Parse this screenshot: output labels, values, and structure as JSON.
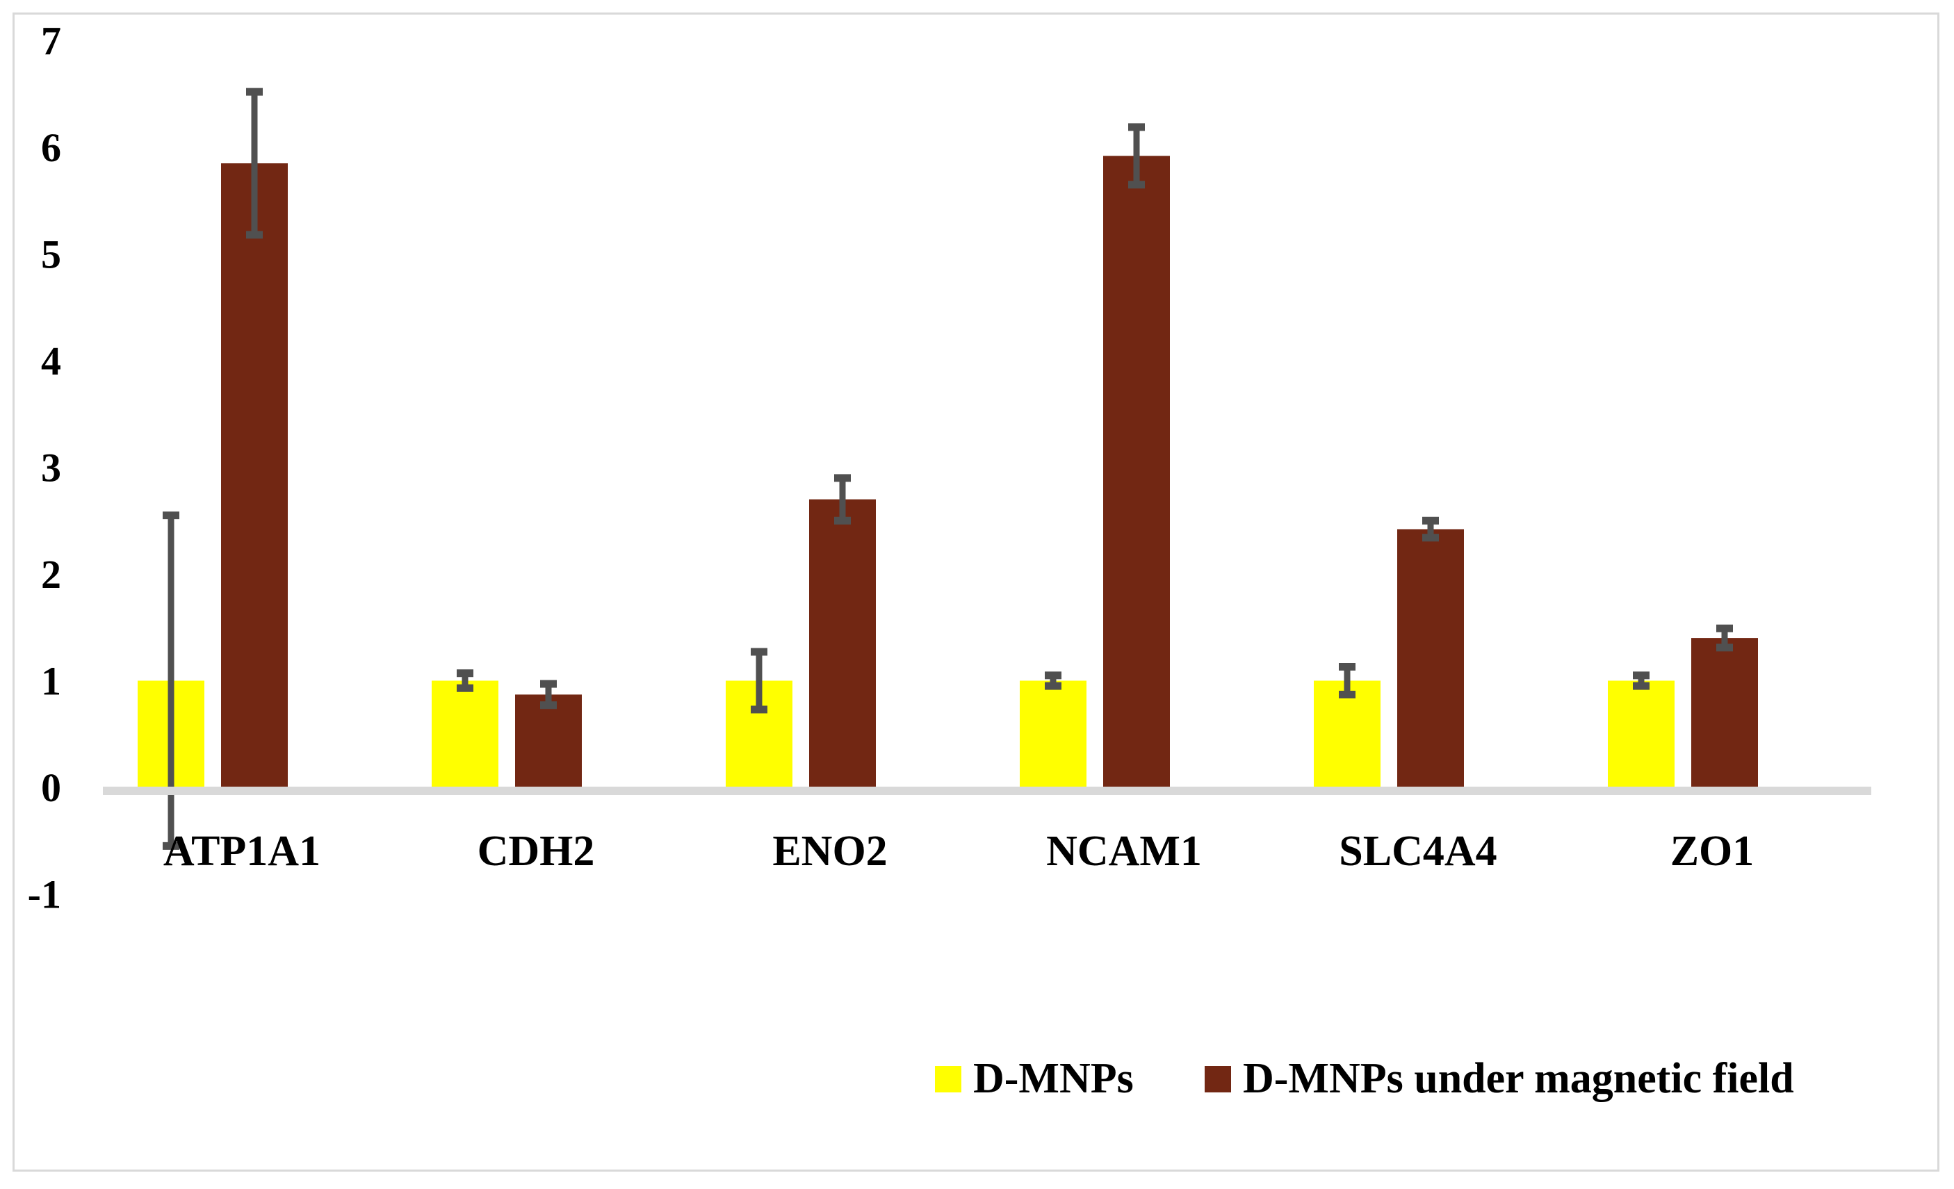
{
  "chart_data": {
    "type": "bar",
    "categories": [
      "ATP1A1",
      "CDH2",
      "ENO2",
      "NCAM1",
      "SLC4A4",
      "ZO1"
    ],
    "series": [
      {
        "name": "D-MNPs",
        "values": [
          1,
          1,
          1,
          1,
          1,
          1
        ],
        "errors": [
          1.55,
          0.07,
          0.27,
          0.05,
          0.13,
          0.05
        ],
        "color": "#ffff00"
      },
      {
        "name": "D-MNPs under magnetic field",
        "values": [
          5.85,
          0.87,
          2.7,
          5.92,
          2.42,
          1.4
        ],
        "errors": [
          0.67,
          0.1,
          0.2,
          0.27,
          0.08,
          0.09
        ],
        "color": "#722713"
      }
    ],
    "ylim": [
      -1,
      7
    ],
    "yticks": [
      -1,
      0,
      1,
      2,
      3,
      4,
      5,
      6,
      7
    ],
    "title": "",
    "xlabel": "",
    "ylabel": "",
    "legend_position": "bottom-right",
    "grid": false,
    "axis_color": "#d9d9d9",
    "error_bar_color": "#505050"
  }
}
